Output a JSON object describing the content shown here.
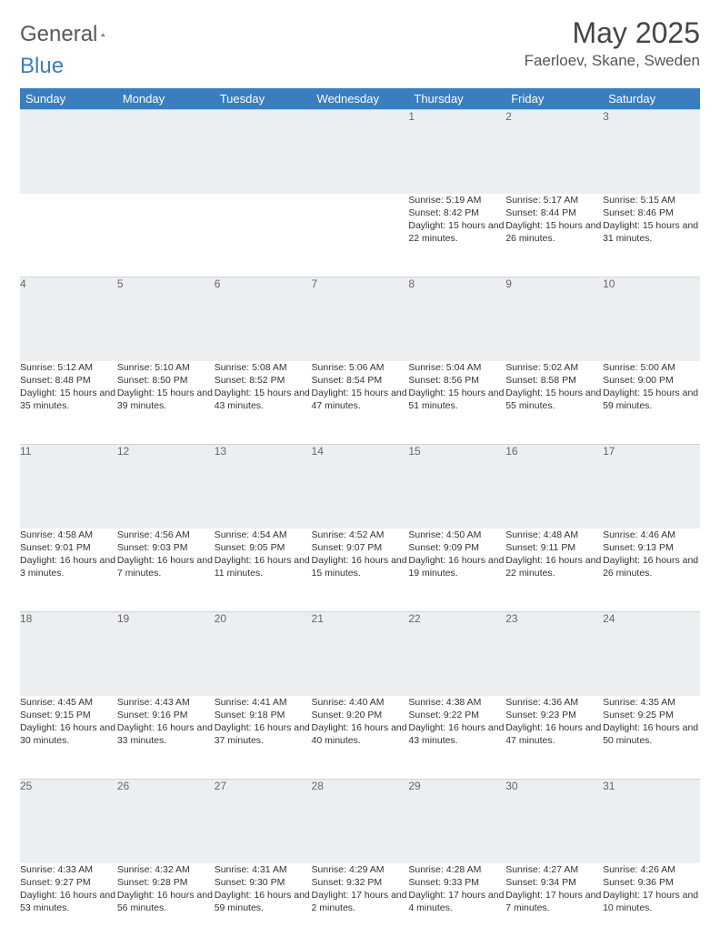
{
  "brand": {
    "part1": "General",
    "part2": "Blue"
  },
  "title": "May 2025",
  "location": "Faerloev, Skane, Sweden",
  "colors": {
    "header_bg": "#3a7ebf",
    "header_fg": "#ffffff",
    "daynum_bg": "#eceff1",
    "text": "#333333"
  },
  "weekdays": [
    "Sunday",
    "Monday",
    "Tuesday",
    "Wednesday",
    "Thursday",
    "Friday",
    "Saturday"
  ],
  "weeks": [
    [
      null,
      null,
      null,
      null,
      {
        "n": "1",
        "sr": "5:19 AM",
        "ss": "8:42 PM",
        "dl": "15 hours and 22 minutes."
      },
      {
        "n": "2",
        "sr": "5:17 AM",
        "ss": "8:44 PM",
        "dl": "15 hours and 26 minutes."
      },
      {
        "n": "3",
        "sr": "5:15 AM",
        "ss": "8:46 PM",
        "dl": "15 hours and 31 minutes."
      }
    ],
    [
      {
        "n": "4",
        "sr": "5:12 AM",
        "ss": "8:48 PM",
        "dl": "15 hours and 35 minutes."
      },
      {
        "n": "5",
        "sr": "5:10 AM",
        "ss": "8:50 PM",
        "dl": "15 hours and 39 minutes."
      },
      {
        "n": "6",
        "sr": "5:08 AM",
        "ss": "8:52 PM",
        "dl": "15 hours and 43 minutes."
      },
      {
        "n": "7",
        "sr": "5:06 AM",
        "ss": "8:54 PM",
        "dl": "15 hours and 47 minutes."
      },
      {
        "n": "8",
        "sr": "5:04 AM",
        "ss": "8:56 PM",
        "dl": "15 hours and 51 minutes."
      },
      {
        "n": "9",
        "sr": "5:02 AM",
        "ss": "8:58 PM",
        "dl": "15 hours and 55 minutes."
      },
      {
        "n": "10",
        "sr": "5:00 AM",
        "ss": "9:00 PM",
        "dl": "15 hours and 59 minutes."
      }
    ],
    [
      {
        "n": "11",
        "sr": "4:58 AM",
        "ss": "9:01 PM",
        "dl": "16 hours and 3 minutes."
      },
      {
        "n": "12",
        "sr": "4:56 AM",
        "ss": "9:03 PM",
        "dl": "16 hours and 7 minutes."
      },
      {
        "n": "13",
        "sr": "4:54 AM",
        "ss": "9:05 PM",
        "dl": "16 hours and 11 minutes."
      },
      {
        "n": "14",
        "sr": "4:52 AM",
        "ss": "9:07 PM",
        "dl": "16 hours and 15 minutes."
      },
      {
        "n": "15",
        "sr": "4:50 AM",
        "ss": "9:09 PM",
        "dl": "16 hours and 19 minutes."
      },
      {
        "n": "16",
        "sr": "4:48 AM",
        "ss": "9:11 PM",
        "dl": "16 hours and 22 minutes."
      },
      {
        "n": "17",
        "sr": "4:46 AM",
        "ss": "9:13 PM",
        "dl": "16 hours and 26 minutes."
      }
    ],
    [
      {
        "n": "18",
        "sr": "4:45 AM",
        "ss": "9:15 PM",
        "dl": "16 hours and 30 minutes."
      },
      {
        "n": "19",
        "sr": "4:43 AM",
        "ss": "9:16 PM",
        "dl": "16 hours and 33 minutes."
      },
      {
        "n": "20",
        "sr": "4:41 AM",
        "ss": "9:18 PM",
        "dl": "16 hours and 37 minutes."
      },
      {
        "n": "21",
        "sr": "4:40 AM",
        "ss": "9:20 PM",
        "dl": "16 hours and 40 minutes."
      },
      {
        "n": "22",
        "sr": "4:38 AM",
        "ss": "9:22 PM",
        "dl": "16 hours and 43 minutes."
      },
      {
        "n": "23",
        "sr": "4:36 AM",
        "ss": "9:23 PM",
        "dl": "16 hours and 47 minutes."
      },
      {
        "n": "24",
        "sr": "4:35 AM",
        "ss": "9:25 PM",
        "dl": "16 hours and 50 minutes."
      }
    ],
    [
      {
        "n": "25",
        "sr": "4:33 AM",
        "ss": "9:27 PM",
        "dl": "16 hours and 53 minutes."
      },
      {
        "n": "26",
        "sr": "4:32 AM",
        "ss": "9:28 PM",
        "dl": "16 hours and 56 minutes."
      },
      {
        "n": "27",
        "sr": "4:31 AM",
        "ss": "9:30 PM",
        "dl": "16 hours and 59 minutes."
      },
      {
        "n": "28",
        "sr": "4:29 AM",
        "ss": "9:32 PM",
        "dl": "17 hours and 2 minutes."
      },
      {
        "n": "29",
        "sr": "4:28 AM",
        "ss": "9:33 PM",
        "dl": "17 hours and 4 minutes."
      },
      {
        "n": "30",
        "sr": "4:27 AM",
        "ss": "9:34 PM",
        "dl": "17 hours and 7 minutes."
      },
      {
        "n": "31",
        "sr": "4:26 AM",
        "ss": "9:36 PM",
        "dl": "17 hours and 10 minutes."
      }
    ]
  ],
  "labels": {
    "sunrise": "Sunrise: ",
    "sunset": "Sunset: ",
    "daylight": "Daylight: "
  }
}
